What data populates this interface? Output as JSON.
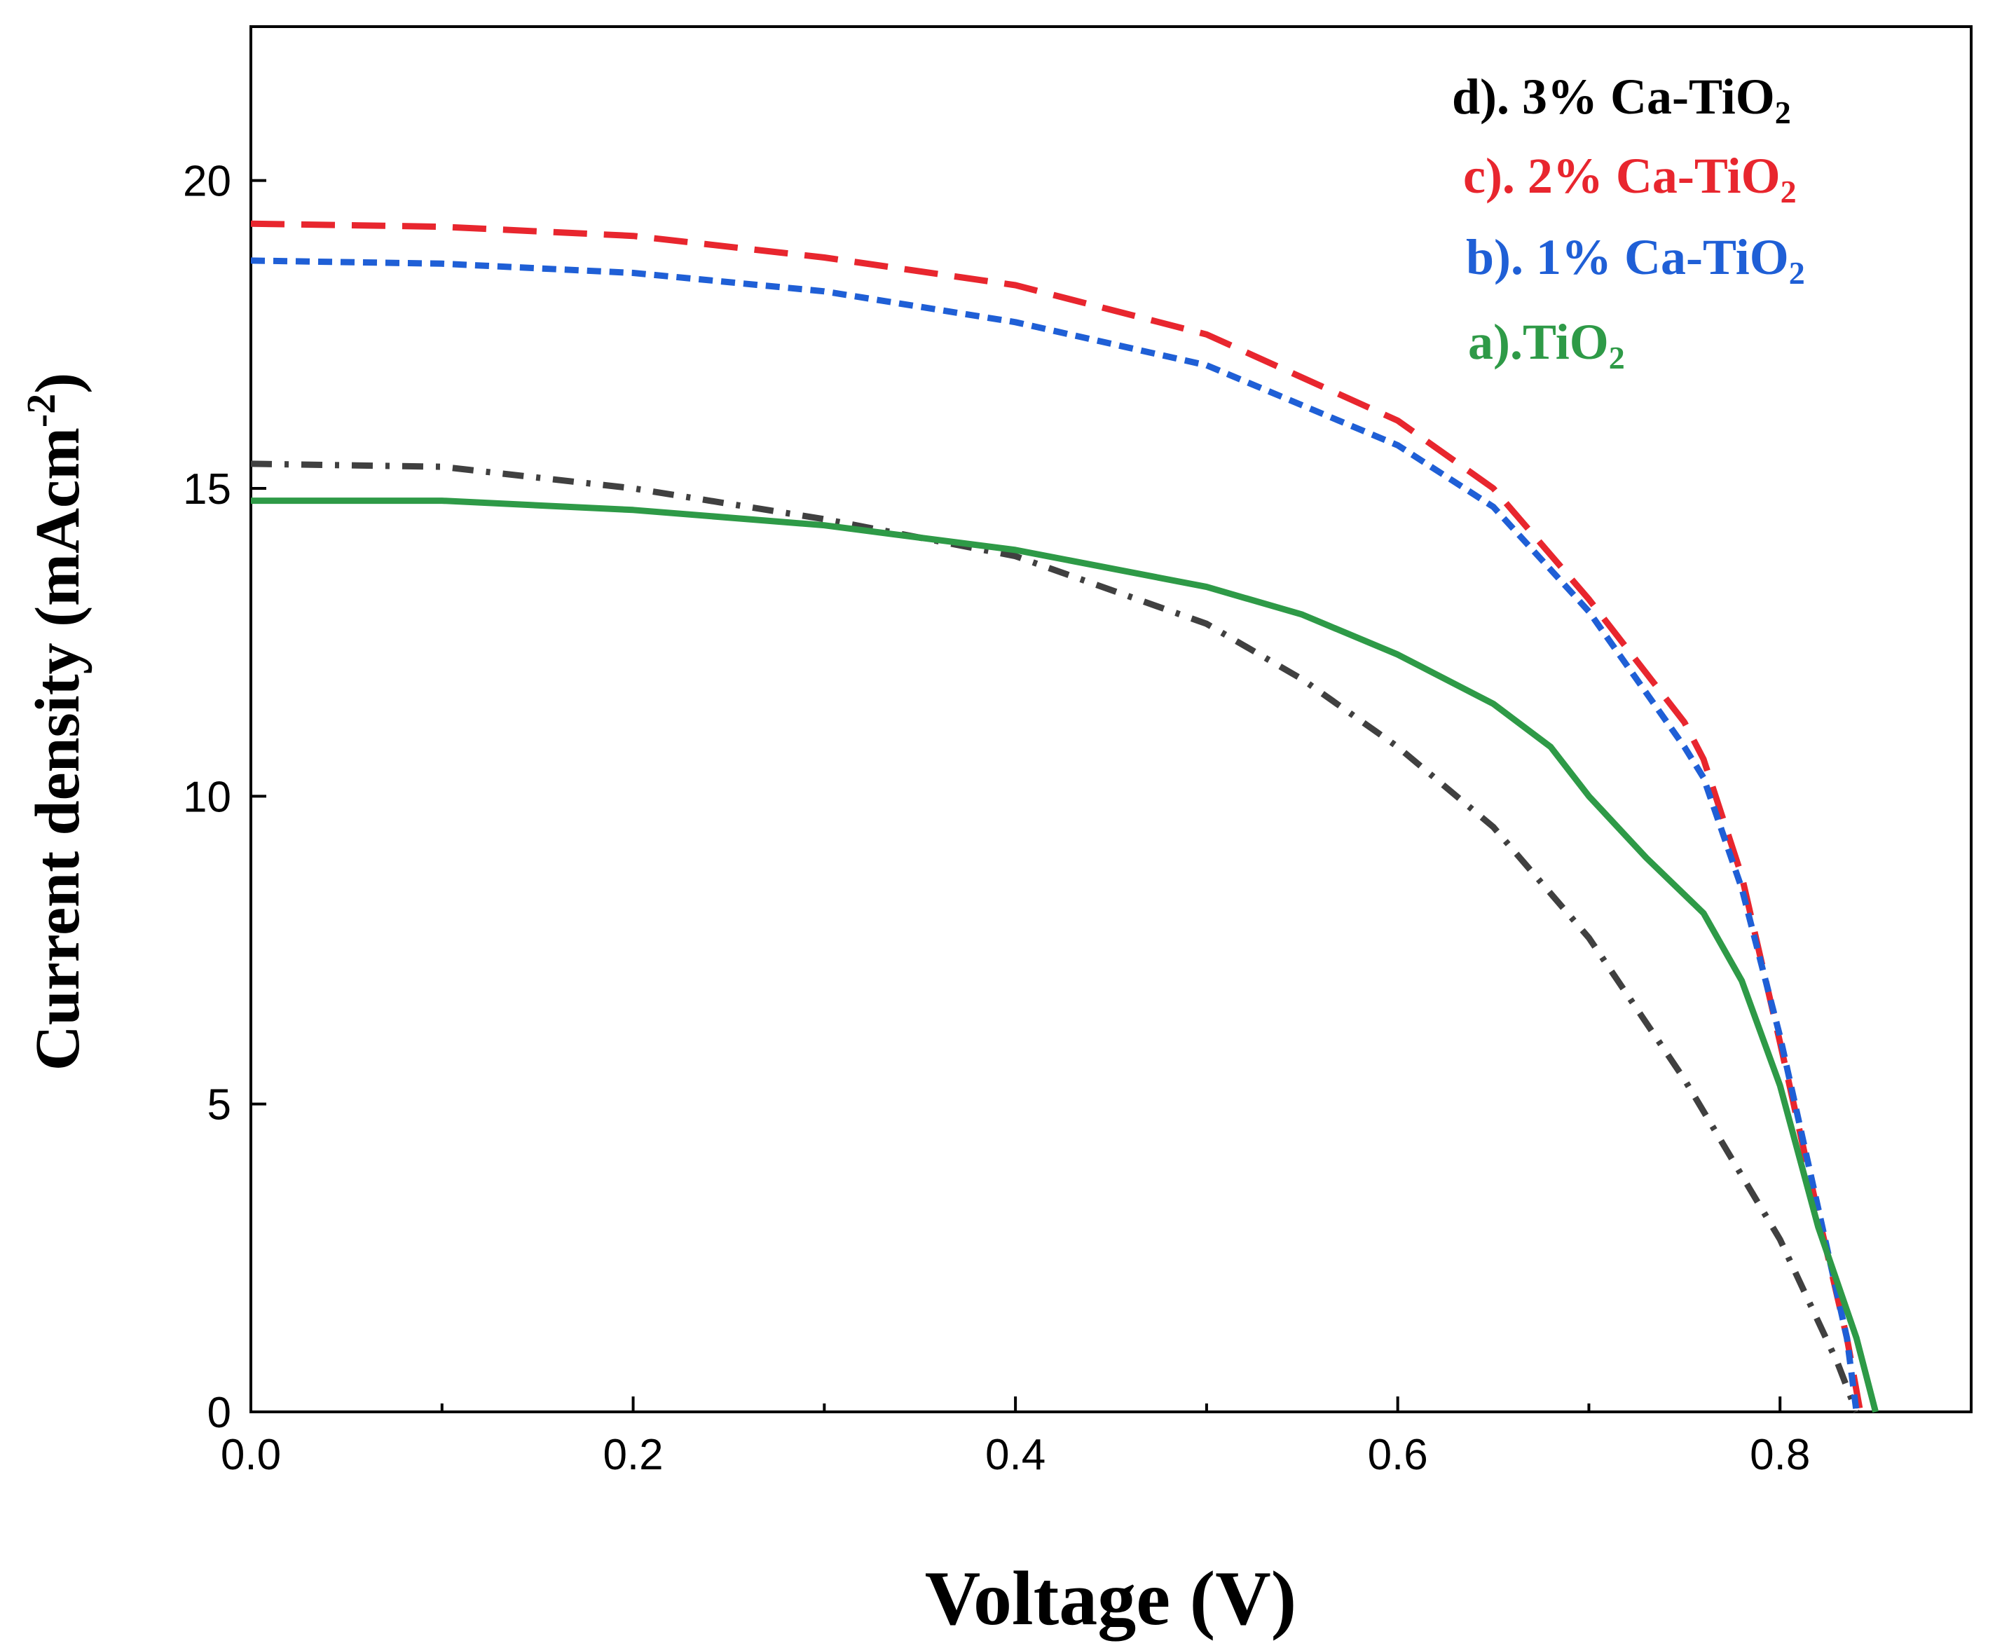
{
  "chart_data": {
    "type": "line",
    "title": "",
    "xlabel": "Voltage (V)",
    "ylabel_main": "Current density (mAcm",
    "ylabel_sup": "-2",
    "ylabel_close": ")",
    "xlim": [
      0.0,
      0.9
    ],
    "ylim": [
      0,
      22.5
    ],
    "x_ticks": [
      0.0,
      0.2,
      0.4,
      0.6,
      0.8
    ],
    "x_tick_labels": [
      "0.0",
      "0.2",
      "0.4",
      "0.6",
      "0.8"
    ],
    "x_minor_ticks": [
      0.1,
      0.3,
      0.5,
      0.7,
      0.9
    ],
    "y_ticks": [
      0,
      5,
      10,
      15,
      20
    ],
    "y_tick_labels": [
      "0",
      "5",
      "10",
      "15",
      "20"
    ],
    "legend_position": "top-right",
    "series": [
      {
        "name": "d). 3% Ca-TiO2",
        "label_main": "d). 3% Ca-TiO",
        "label_sub": "2",
        "color": "#404040",
        "style": "dashdot",
        "x": [
          0.0,
          0.1,
          0.2,
          0.3,
          0.4,
          0.5,
          0.55,
          0.6,
          0.65,
          0.7,
          0.75,
          0.8,
          0.83,
          0.84
        ],
        "y": [
          15.4,
          15.35,
          15.0,
          14.5,
          13.9,
          12.8,
          11.9,
          10.8,
          9.5,
          7.7,
          5.4,
          2.8,
          0.8,
          0.0
        ]
      },
      {
        "name": "c). 2% Ca-TiO2",
        "label_main": "c). 2% Ca-TiO",
        "label_sub": "2",
        "color": "#e8262e",
        "style": "longdash",
        "x": [
          0.0,
          0.1,
          0.2,
          0.3,
          0.4,
          0.5,
          0.6,
          0.65,
          0.7,
          0.75,
          0.76,
          0.78,
          0.8,
          0.82,
          0.835,
          0.842
        ],
        "y": [
          19.3,
          19.25,
          19.1,
          18.75,
          18.3,
          17.5,
          16.1,
          15.0,
          13.2,
          11.2,
          10.6,
          8.7,
          6.0,
          3.2,
          1.2,
          0.0
        ]
      },
      {
        "name": "b). 1% Ca-TiO2",
        "label_main": "b). 1% Ca-TiO",
        "label_sub": "2",
        "color": "#1f5fd6",
        "style": "dash",
        "x": [
          0.0,
          0.1,
          0.2,
          0.3,
          0.4,
          0.5,
          0.6,
          0.65,
          0.7,
          0.75,
          0.76,
          0.78,
          0.8,
          0.82,
          0.835,
          0.84
        ],
        "y": [
          18.7,
          18.65,
          18.5,
          18.2,
          17.7,
          17.0,
          15.7,
          14.7,
          13.0,
          10.8,
          10.3,
          8.5,
          6.1,
          3.3,
          1.2,
          0.0
        ]
      },
      {
        "name": "a).TiO2",
        "label_main": "a).TiO",
        "label_sub": "2",
        "color": "#2e9a47",
        "style": "solid",
        "x": [
          0.0,
          0.1,
          0.2,
          0.3,
          0.4,
          0.5,
          0.55,
          0.6,
          0.65,
          0.68,
          0.7,
          0.73,
          0.76,
          0.78,
          0.8,
          0.82,
          0.84,
          0.85
        ],
        "y": [
          14.8,
          14.8,
          14.65,
          14.4,
          14.0,
          13.4,
          12.95,
          12.3,
          11.5,
          10.8,
          10.0,
          9.0,
          8.1,
          7.0,
          5.3,
          3.0,
          1.2,
          0.0
        ]
      }
    ]
  }
}
